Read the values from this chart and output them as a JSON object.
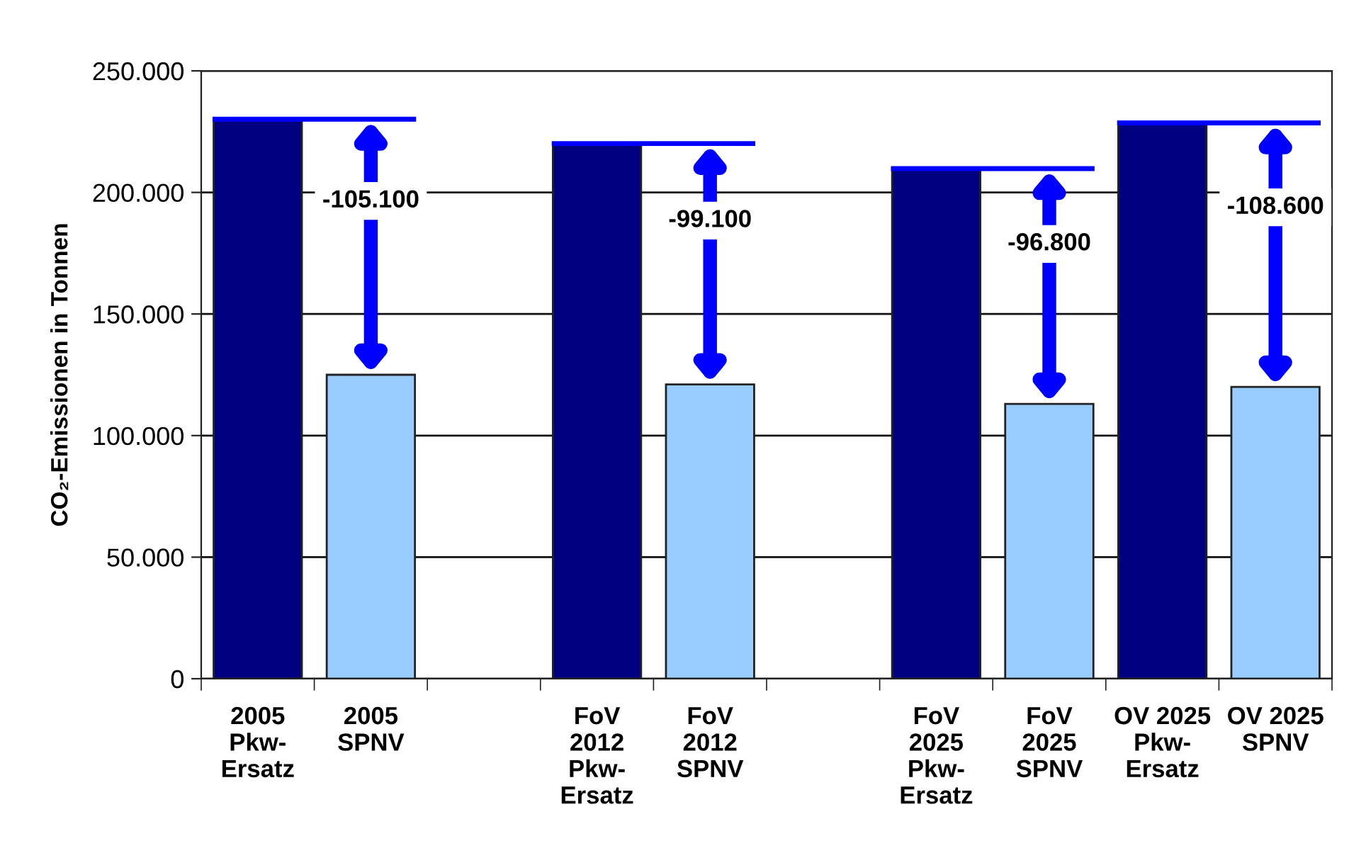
{
  "chart_data": {
    "type": "bar",
    "ylabel": "CO₂-Emissionen in Tonnen",
    "categories": [
      "2005\nPkw-\nErsatz",
      "2005\nSPNV",
      null,
      "FoV\n2012\nPkw-\nErsatz",
      "FoV\n2012\nSPNV",
      null,
      "FoV\n2025\nPkw-\nErsatz",
      "FoV\n2025\nSPNV",
      "OV 2025\nPkw-\nErsatz",
      "OV 2025\nSPNV"
    ],
    "values": [
      230100,
      125000,
      null,
      220100,
      121000,
      null,
      209800,
      113000,
      228600,
      120000
    ],
    "colors": [
      "#000080",
      "#99ccff",
      null,
      "#000080",
      "#99ccff",
      null,
      "#000080",
      "#99ccff",
      "#000080",
      "#99ccff"
    ],
    "ylim": [
      0,
      250000
    ],
    "yticks": [
      {
        "value": 0,
        "label": "0"
      },
      {
        "value": 50000,
        "label": "50.000"
      },
      {
        "value": 100000,
        "label": "100.000"
      },
      {
        "value": 150000,
        "label": "150.000"
      },
      {
        "value": 200000,
        "label": "200.000"
      },
      {
        "value": 250000,
        "label": "250.000"
      }
    ],
    "grid": "y",
    "annotations": [
      "-105.100",
      "-99.100",
      "-96.800",
      "-108.600"
    ]
  }
}
